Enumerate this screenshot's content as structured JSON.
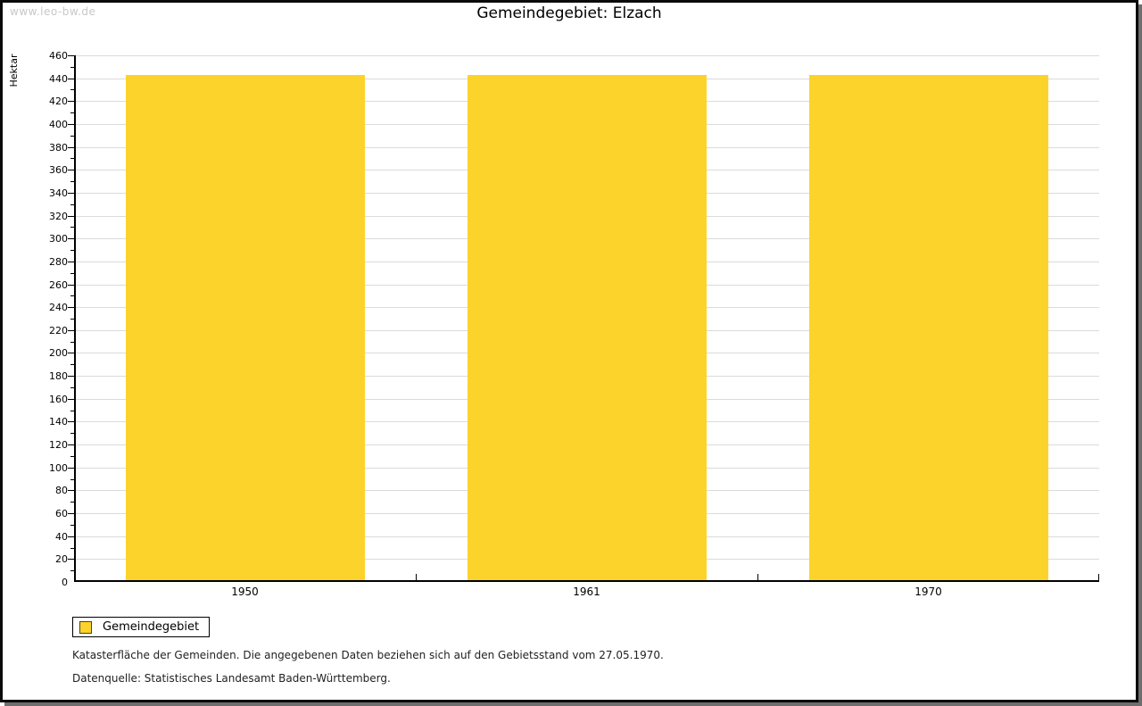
{
  "watermark": "www.leo-bw.de",
  "title": "Gemeindegebiet: Elzach",
  "legend": {
    "label": "Gemeindegebiet"
  },
  "footnotes": {
    "line1": "Katasterfläche der Gemeinden. Die angegebenen Daten beziehen sich auf den Gebietsstand vom 27.05.1970.",
    "line2": "Datenquelle: Statistisches Landesamt Baden-Württemberg."
  },
  "colors": {
    "bar": "#fcd32b",
    "grid": "#dbdbdb",
    "axis": "#000000",
    "watermark": "#c6c8ca",
    "frame_shadow": "#6e6e6e"
  },
  "chart_data": {
    "type": "bar",
    "title": "Gemeindegebiet: Elzach",
    "categories": [
      "1950",
      "1961",
      "1970"
    ],
    "series": [
      {
        "name": "Gemeindegebiet",
        "color": "#fcd32b",
        "values": [
          443,
          443,
          443
        ]
      }
    ],
    "xlabel": "",
    "ylabel": "Hektar",
    "ylim": [
      0,
      460
    ],
    "ytick_step": 20,
    "yminor_step": 10,
    "grid": true,
    "legend_position": "bottom-left"
  }
}
